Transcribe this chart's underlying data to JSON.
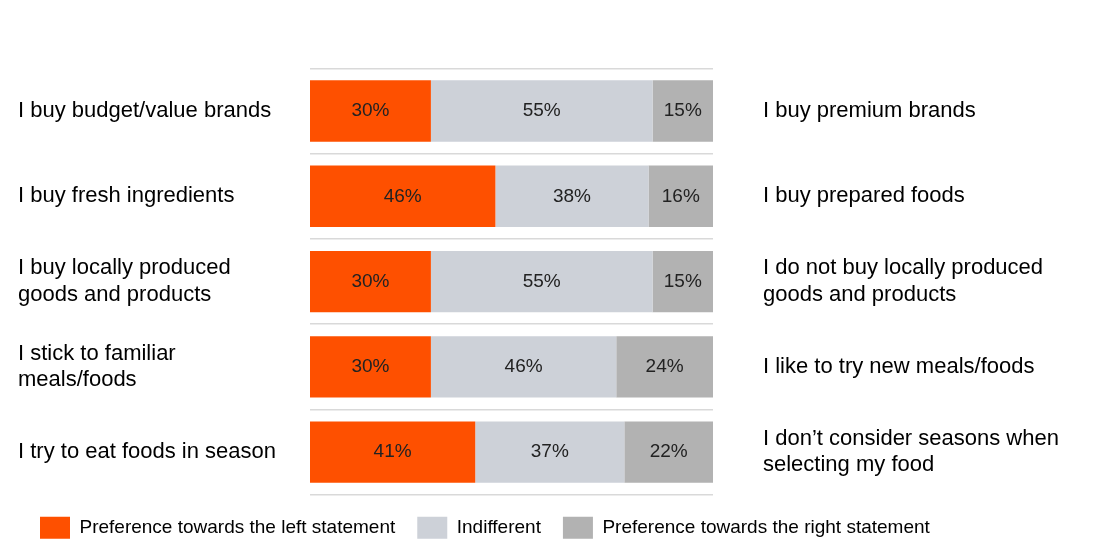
{
  "chart_data": {
    "type": "bar",
    "orientation": "horizontal",
    "stacked": true,
    "data_labels": true,
    "grid": "y",
    "legend": "bottom",
    "tick_labels": "y",
    "categories": [
      "I buy budget/value brands",
      "I buy fresh ingredients",
      "I buy locally produced goods and products",
      "I stick to familiar meals/foods",
      "I try to eat foods in season"
    ],
    "y2_categories": [
      "I buy premium brands",
      "I buy prepared foods",
      "I do not buy locally produced goods and products",
      "I like to try new meals/foods",
      "I don’t consider seasons when selecting my food"
    ],
    "xlim": [
      0,
      100
    ],
    "series": [
      {
        "name": "Preference towards the left statement",
        "color": "#fe5000",
        "values": [
          30,
          46,
          30,
          30,
          41
        ],
        "value_labels": [
          "30%",
          "46%",
          "30%",
          "30%",
          "41%"
        ]
      },
      {
        "name": "Indifferent",
        "color": "#cdd1d8",
        "values": [
          55,
          38,
          55,
          46,
          37
        ],
        "value_labels": [
          "55%",
          "38%",
          "55%",
          "46%",
          "37%"
        ]
      },
      {
        "name": "Preference towards the right statement",
        "color": "#b2b2b2",
        "values": [
          15,
          16,
          15,
          24,
          22
        ],
        "value_labels": [
          "15%",
          "16%",
          "15%",
          "24%",
          "22%"
        ]
      }
    ]
  }
}
